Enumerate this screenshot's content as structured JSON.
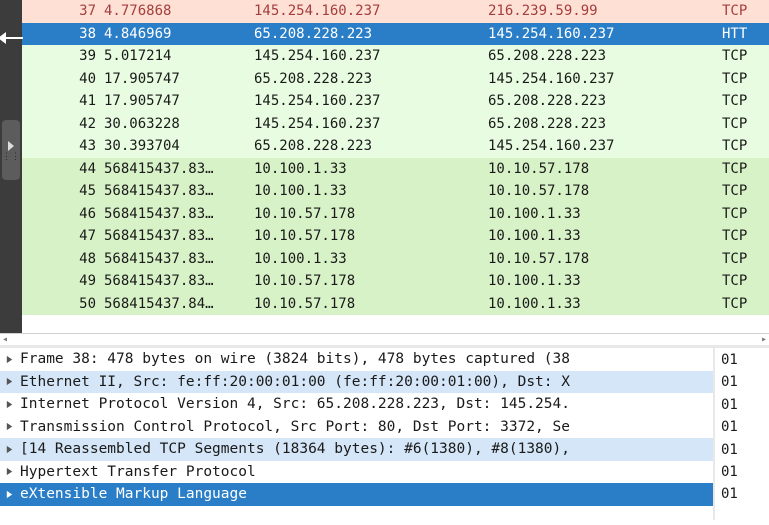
{
  "colors": {
    "bg_light_red": "#fee0d4",
    "fg_red": "#a53e3e",
    "bg_selected": "#2a7ec8",
    "fg_selected": "#ffffff",
    "bg_green_lt": "#e7fce0",
    "bg_green_dk": "#d8f2c8",
    "sel_light": "#d4e6f7"
  },
  "packets": [
    {
      "no": "37",
      "time": "4.776868",
      "src": "145.254.160.237",
      "dst": "216.239.59.99",
      "proto": "TCP",
      "cls": "bg-light-red"
    },
    {
      "no": "38",
      "time": "4.846969",
      "src": "65.208.228.223",
      "dst": "145.254.160.237",
      "proto": "HTT",
      "cls": "bg-selected"
    },
    {
      "no": "39",
      "time": "5.017214",
      "src": "145.254.160.237",
      "dst": "65.208.228.223",
      "proto": "TCP",
      "cls": "bg-green-lt"
    },
    {
      "no": "40",
      "time": "17.905747",
      "src": "65.208.228.223",
      "dst": "145.254.160.237",
      "proto": "TCP",
      "cls": "bg-green-lt"
    },
    {
      "no": "41",
      "time": "17.905747",
      "src": "145.254.160.237",
      "dst": "65.208.228.223",
      "proto": "TCP",
      "cls": "bg-green-lt"
    },
    {
      "no": "42",
      "time": "30.063228",
      "src": "145.254.160.237",
      "dst": "65.208.228.223",
      "proto": "TCP",
      "cls": "bg-green-lt"
    },
    {
      "no": "43",
      "time": "30.393704",
      "src": "65.208.228.223",
      "dst": "145.254.160.237",
      "proto": "TCP",
      "cls": "bg-green-lt"
    },
    {
      "no": "44",
      "time": "568415437.83…",
      "src": "10.100.1.33",
      "dst": "10.10.57.178",
      "proto": "TCP",
      "cls": "bg-green-dk"
    },
    {
      "no": "45",
      "time": "568415437.83…",
      "src": "10.100.1.33",
      "dst": "10.10.57.178",
      "proto": "TCP",
      "cls": "bg-green-dk"
    },
    {
      "no": "46",
      "time": "568415437.83…",
      "src": "10.10.57.178",
      "dst": "10.100.1.33",
      "proto": "TCP",
      "cls": "bg-green-dk"
    },
    {
      "no": "47",
      "time": "568415437.83…",
      "src": "10.10.57.178",
      "dst": "10.100.1.33",
      "proto": "TCP",
      "cls": "bg-green-dk"
    },
    {
      "no": "48",
      "time": "568415437.83…",
      "src": "10.100.1.33",
      "dst": "10.10.57.178",
      "proto": "TCP",
      "cls": "bg-green-dk"
    },
    {
      "no": "49",
      "time": "568415437.83…",
      "src": "10.10.57.178",
      "dst": "10.100.1.33",
      "proto": "TCP",
      "cls": "bg-green-dk"
    },
    {
      "no": "50",
      "time": "568415437.84…",
      "src": "10.10.57.178",
      "dst": "10.100.1.33",
      "proto": "TCP",
      "cls": "bg-green-dk"
    }
  ],
  "tree": [
    {
      "label": "Frame 38: 478 bytes on wire (3824 bits), 478 bytes captured (38",
      "cls": "bg-white"
    },
    {
      "label": "Ethernet II, Src: fe:ff:20:00:01:00 (fe:ff:20:00:01:00), Dst: X",
      "cls": "sel-light"
    },
    {
      "label": "Internet Protocol Version 4, Src: 65.208.228.223, Dst: 145.254.",
      "cls": "bg-white"
    },
    {
      "label": "Transmission Control Protocol, Src Port: 80, Dst Port: 3372, Se",
      "cls": "bg-white"
    },
    {
      "label": "[14 Reassembled TCP Segments (18364 bytes): #6(1380), #8(1380),",
      "cls": "sel-light"
    },
    {
      "label": "Hypertext Transfer Protocol",
      "cls": "bg-white"
    },
    {
      "label": "eXtensible Markup Language",
      "cls": "sel-blue"
    }
  ],
  "hex": [
    "01",
    "01",
    "01",
    "01",
    "01",
    "01",
    "01"
  ]
}
